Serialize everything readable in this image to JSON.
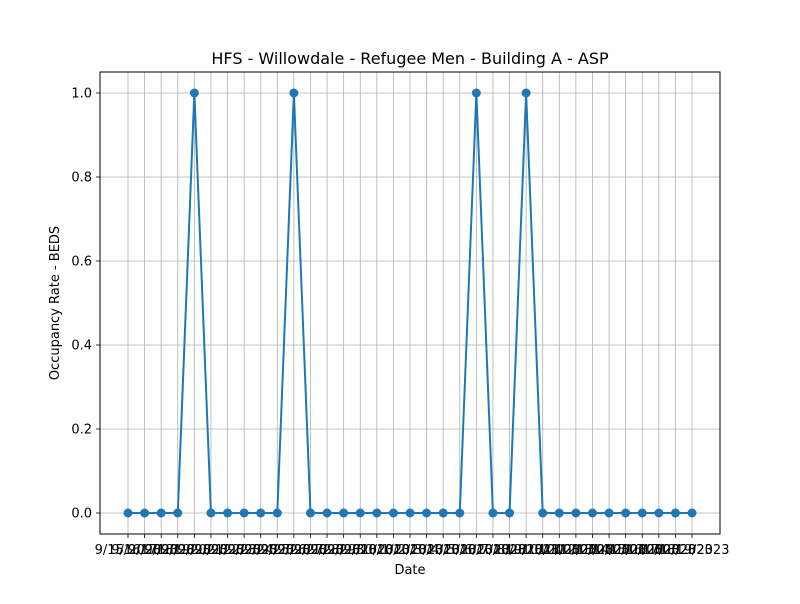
{
  "chart_data": {
    "type": "line",
    "title": "HFS - Willowdale - Refugee Men - Building A - ASP",
    "xlabel": "Date",
    "ylabel": "Occupancy Rate - BEDS",
    "categories": [
      "9/15/2023",
      "9/16/2023",
      "9/17/2023",
      "9/18/2023",
      "9/19/2023",
      "9/20/2023",
      "9/21/2023",
      "9/22/2023",
      "9/23/2023",
      "9/24/2023",
      "9/25/2023",
      "9/26/2023",
      "9/27/2023",
      "9/28/2023",
      "9/29/2023",
      "9/30/2023",
      "10/1/2023",
      "10/2/2023",
      "10/3/2023",
      "10/4/2023",
      "10/5/2023",
      "10/6/2023",
      "10/7/2023",
      "10/8/2023",
      "10/9/2023",
      "10/10/2023",
      "10/11/2023",
      "10/12/2023",
      "10/13/2023",
      "10/14/2023",
      "10/15/2023",
      "10/16/2023",
      "10/17/2023",
      "10/18/2023",
      "10/19/2023"
    ],
    "series": [
      {
        "values": [
          0,
          0,
          0,
          0,
          1,
          0,
          0,
          0,
          0,
          0,
          1,
          0,
          0,
          0,
          0,
          0,
          0,
          0,
          0,
          0,
          0,
          1,
          0,
          0,
          1,
          0,
          0,
          0,
          0,
          0,
          0,
          0,
          0,
          0,
          0
        ]
      }
    ],
    "yticks": [
      "0.0",
      "0.2",
      "0.4",
      "0.6",
      "0.8",
      "1.0"
    ],
    "ylim": [
      -0.05,
      1.05
    ],
    "grid": true,
    "colors": {
      "line": "#1f77b4",
      "grid": "#b0b0b0",
      "axis": "#000000"
    }
  }
}
